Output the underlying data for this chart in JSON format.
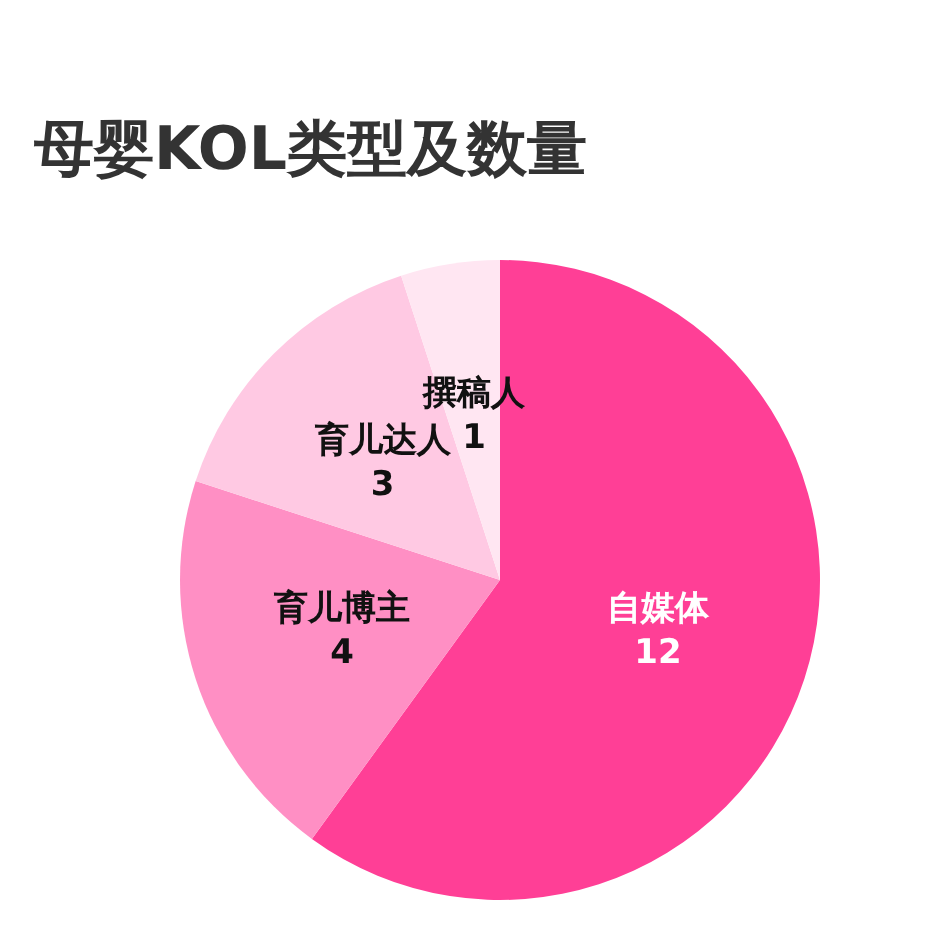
{
  "chart_data": {
    "type": "pie",
    "title": "母婴KOL类型及数量",
    "categories": [
      "自媒体",
      "育儿博主",
      "育儿达人",
      "撰稿人"
    ],
    "values": [
      12,
      4,
      3,
      1
    ],
    "colors": [
      "#ff3f96",
      "#ff8fc4",
      "#ffc9e3",
      "#ffe6f2"
    ],
    "data_labels": true,
    "legend": false
  }
}
